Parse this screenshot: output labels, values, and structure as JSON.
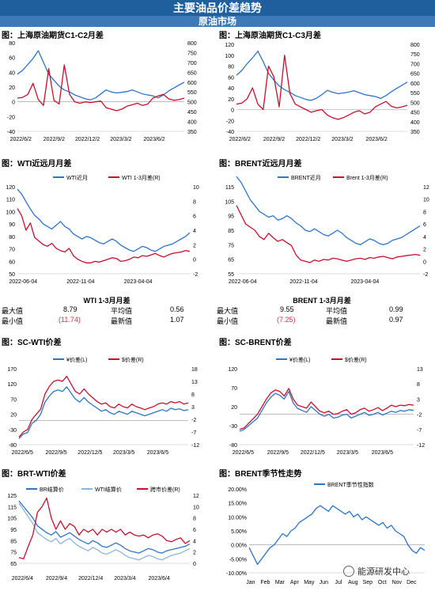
{
  "header": {
    "title": "主要油品价差趋势",
    "subtitle": "原油市场"
  },
  "colors": {
    "blue": "#2e75c6",
    "red": "#c8102e",
    "lightblue": "#8fb4dc",
    "header_bg": "#1f5f9e"
  },
  "panels": {
    "p1": {
      "title": "图：上海原油期货C1-C2月差"
    },
    "p2": {
      "title": "图：上海原油期货C1-C3月差"
    },
    "p3": {
      "title": "图：WTI近远月月差"
    },
    "p4": {
      "title": "图：BRENT近远月月差"
    },
    "p5": {
      "title": "图：SC-WTI价差"
    },
    "p6": {
      "title": "图：SC-BRENT价差"
    },
    "p7": {
      "title": "图：BRT-WTI价差"
    },
    "p8": {
      "title": "图：BRENT季节性走势"
    }
  },
  "stats": {
    "wti": {
      "title": "WTI 1-3月月差",
      "max_label": "最大值",
      "max_value": "8.79",
      "avg_label": "平均值",
      "avg_value": "0.56",
      "min_label": "最小值",
      "min_value": "(11.74)",
      "latest_label": "最新值",
      "latest_value": "1.07"
    },
    "brent": {
      "title": "BRENT 1-3月月差",
      "max_label": "最大值",
      "max_value": "9.55",
      "avg_label": "平均值",
      "avg_value": "0.99",
      "min_label": "最小值",
      "min_value": "(7.25)",
      "latest_label": "最新值",
      "latest_value": "0.97"
    }
  },
  "watermark": {
    "text": "能源研发中心"
  },
  "chart_data": [
    {
      "id": "p1",
      "type": "line",
      "x_ticks": [
        "2022/6/2",
        "2022/9/2",
        "2022/12/2",
        "2023/3/2",
        "2023/6/2"
      ],
      "y_ticks": [
        "80",
        "60",
        "40",
        "20",
        "0",
        "-20",
        "-40"
      ],
      "ylim": [
        -40,
        80
      ],
      "y2_ticks": [
        "800",
        "750",
        "700",
        "650",
        "600",
        "550",
        "500",
        "450",
        "400",
        "350"
      ],
      "y2lim": [
        350,
        800
      ],
      "series": [
        {
          "axis": "right",
          "color": "#2e75c6",
          "values": [
            640,
            660,
            690,
            720,
            760,
            700,
            640,
            610,
            580,
            560,
            550,
            535,
            525,
            515,
            510,
            520,
            540,
            560,
            550,
            545,
            548,
            552,
            560,
            550,
            540,
            535,
            530,
            520,
            535,
            555,
            570,
            585,
            600
          ]
        },
        {
          "axis": "left",
          "color": "#c8102e",
          "values": [
            5,
            6,
            10,
            25,
            3,
            -5,
            45,
            2,
            -3,
            50,
            10,
            0,
            -2,
            0,
            -1,
            0,
            1,
            -8,
            -10,
            -12,
            -10,
            -6,
            -4,
            -2,
            -5,
            -3,
            5,
            8,
            10,
            4,
            2,
            3,
            5
          ]
        }
      ]
    },
    {
      "id": "p2",
      "type": "line",
      "x_ticks": [
        "2022/6/2",
        "2022/9/2",
        "2022/12/2",
        "2023/3/2",
        "2023/6/2"
      ],
      "y_ticks": [
        "120",
        "100",
        "80",
        "60",
        "40",
        "20",
        "0",
        "-20",
        "-40"
      ],
      "ylim": [
        -40,
        120
      ],
      "y2_ticks": [
        "800",
        "750",
        "700",
        "650",
        "600",
        "550",
        "500",
        "450",
        "400",
        "350"
      ],
      "y2lim": [
        350,
        800
      ],
      "series": [
        {
          "axis": "right",
          "color": "#2e75c6",
          "values": [
            640,
            665,
            700,
            730,
            765,
            710,
            650,
            615,
            585,
            565,
            552,
            535,
            525,
            515,
            510,
            522,
            540,
            562,
            552,
            545,
            548,
            553,
            560,
            550,
            540,
            535,
            530,
            520,
            535,
            555,
            572,
            588,
            605
          ]
        },
        {
          "axis": "left",
          "color": "#c8102e",
          "values": [
            10,
            12,
            20,
            40,
            10,
            0,
            80,
            60,
            5,
            100,
            30,
            10,
            5,
            0,
            -5,
            -2,
            0,
            -10,
            -15,
            -18,
            -15,
            -10,
            -5,
            -2,
            -8,
            -5,
            5,
            10,
            15,
            6,
            3,
            5,
            8
          ]
        }
      ]
    },
    {
      "id": "p3",
      "type": "line",
      "x_ticks": [
        "2022-06-04",
        "2022-11-04",
        "2023-04-04"
      ],
      "y_ticks": [
        "120",
        "110",
        "100",
        "90",
        "80",
        "70",
        "60",
        "50"
      ],
      "ylim": [
        50,
        120
      ],
      "y2_ticks": [
        "10",
        "8",
        "6",
        "4",
        "2",
        "0",
        "-2"
      ],
      "y2lim": [
        -2,
        10
      ],
      "legend": [
        "WTI近月",
        "WTI 1-3月差(R)"
      ],
      "series": [
        {
          "name": "WTI近月",
          "axis": "left",
          "color": "#2e75c6",
          "values": [
            118,
            114,
            108,
            102,
            97,
            94,
            90,
            88,
            86,
            89,
            92,
            88,
            86,
            82,
            80,
            78,
            80,
            79,
            77,
            75,
            74,
            76,
            78,
            76,
            73,
            71,
            69,
            68,
            70,
            72,
            71,
            69,
            68,
            70,
            72,
            73,
            74,
            76,
            78,
            80,
            83
          ]
        },
        {
          "name": "WTI 1-3月差(R)",
          "axis": "right",
          "color": "#c8102e",
          "values": [
            7,
            6,
            4,
            5,
            3,
            2.5,
            2,
            1.8,
            2.2,
            1.5,
            1.2,
            1.0,
            1.5,
            0.5,
            0,
            -0.3,
            -0.5,
            -0.5,
            -0.3,
            -0.4,
            -0.2,
            0,
            0.2,
            0.1,
            -0.3,
            -0.2,
            0,
            0.3,
            0.2,
            0.5,
            0.4,
            0.6,
            0.8,
            0.5,
            0.3,
            0.6,
            0.8,
            0.9,
            1.0,
            1.2,
            1.1
          ]
        }
      ]
    },
    {
      "id": "p4",
      "type": "line",
      "x_ticks": [
        "2022-06-04",
        "2022-11-04",
        "2023-04-04"
      ],
      "y_ticks": [
        "115",
        "105",
        "95",
        "85",
        "75",
        "65",
        "55"
      ],
      "ylim": [
        55,
        115
      ],
      "y2_ticks": [
        "12",
        "10",
        "8",
        "6",
        "4",
        "2",
        "0",
        "-2"
      ],
      "y2lim": [
        -2,
        12
      ],
      "legend": [
        "BRENT近月",
        "Brent 1-3月差(R)"
      ],
      "series": [
        {
          "name": "BRENT近月",
          "axis": "left",
          "color": "#2e75c6",
          "values": [
            122,
            118,
            112,
            106,
            102,
            98,
            96,
            94,
            95,
            92,
            93,
            95,
            93,
            90,
            88,
            85,
            84,
            86,
            84,
            82,
            81,
            83,
            85,
            83,
            80,
            78,
            76,
            75,
            77,
            79,
            78,
            76,
            75,
            76,
            78,
            79,
            80,
            82,
            84,
            86,
            88
          ]
        },
        {
          "name": "Brent 1-3月差(R)",
          "axis": "right",
          "color": "#c8102e",
          "values": [
            9,
            7.5,
            6,
            5.5,
            5,
            4,
            3.5,
            4.5,
            3.8,
            3.2,
            3.5,
            3.0,
            2.5,
            1.0,
            0.2,
            0.0,
            -0.2,
            0.2,
            0.0,
            0.3,
            0.2,
            0.5,
            0.4,
            0.2,
            0.0,
            0.2,
            0.4,
            0.5,
            0.3,
            0.6,
            0.5,
            0.7,
            0.8,
            0.6,
            0.4,
            0.7,
            0.8,
            0.9,
            1.0,
            1.1,
            0.97
          ]
        }
      ]
    },
    {
      "id": "p5",
      "type": "line",
      "x_ticks": [
        "2022/6/5",
        "2022/9/5",
        "2022/12/5",
        "2023/3/5",
        "2023/6/5"
      ],
      "y_ticks": [
        "170",
        "120",
        "70",
        "20",
        "-30",
        "-80"
      ],
      "ylim": [
        -80,
        170
      ],
      "y2_ticks": [
        "18",
        "13",
        "8",
        "3",
        "-2",
        "-7",
        "-12"
      ],
      "y2lim": [
        -12,
        18
      ],
      "legend": [
        "¥价差(L)",
        "$价差(R)"
      ],
      "series": [
        {
          "name": "¥价差(L)",
          "axis": "left",
          "color": "#2e75c6",
          "values": [
            -60,
            -45,
            -40,
            -10,
            0,
            20,
            60,
            80,
            95,
            100,
            95,
            110,
            90,
            70,
            60,
            75,
            60,
            50,
            40,
            30,
            35,
            25,
            20,
            30,
            25,
            20,
            30,
            25,
            20,
            15,
            20,
            25,
            30,
            35,
            30,
            40,
            35,
            38,
            32,
            35
          ]
        },
        {
          "name": "$价差(R)",
          "axis": "right",
          "color": "#c8102e",
          "values": [
            -9,
            -7,
            -6,
            -2,
            0,
            2,
            8,
            11,
            13,
            13.5,
            13,
            15,
            12,
            9,
            8,
            10,
            8,
            6.5,
            5,
            4,
            4.5,
            3,
            2.5,
            4,
            3,
            2.5,
            4,
            3,
            2.5,
            1.8,
            2.5,
            3,
            4,
            4.5,
            4,
            5,
            4.5,
            5,
            4,
            4.5
          ]
        }
      ]
    },
    {
      "id": "p6",
      "type": "line",
      "x_ticks": [
        "2022/6/5",
        "2022/9/5",
        "2022/12/5",
        "2023/3/5",
        "2023/6/5"
      ],
      "y_ticks": [
        "120",
        "70",
        "20",
        "-30",
        "-80"
      ],
      "ylim": [
        -80,
        120
      ],
      "y2_ticks": [
        "13",
        "8",
        "3",
        "-2",
        "-7",
        "-12"
      ],
      "y2lim": [
        -12,
        13
      ],
      "legend": [
        "¥价差(L)",
        "$价差(R)"
      ],
      "series": [
        {
          "name": "¥价差(L)",
          "axis": "left",
          "color": "#2e75c6",
          "values": [
            -45,
            -40,
            -30,
            -20,
            -10,
            10,
            30,
            45,
            55,
            50,
            40,
            60,
            30,
            15,
            10,
            5,
            20,
            10,
            0,
            -5,
            0,
            -10,
            -8,
            -2,
            0,
            -10,
            -5,
            0,
            5,
            -3,
            0,
            5,
            -2,
            3,
            8,
            5,
            10,
            8,
            12,
            10
          ]
        },
        {
          "name": "$价差(R)",
          "axis": "right",
          "color": "#c8102e",
          "values": [
            -7,
            -6.5,
            -5,
            -3.5,
            -2,
            0.5,
            3,
            5,
            6,
            5.5,
            4,
            6.5,
            3,
            1,
            0.5,
            0,
            2,
            0.5,
            -1,
            -1.5,
            -1,
            -2,
            -1.8,
            -1,
            -0.5,
            -2,
            -1.5,
            -0.5,
            0,
            -1,
            -0.5,
            0.2,
            -0.8,
            0,
            1,
            0.5,
            1,
            0.8,
            1.2,
            1
          ]
        }
      ]
    },
    {
      "id": "p7",
      "type": "line",
      "x_ticks": [
        "2022/6/4",
        "2022/9/4",
        "2022/12/4",
        "2023/3/4",
        "2023/6/4"
      ],
      "y_ticks": [
        "125",
        "115",
        "105",
        "95",
        "85",
        "75",
        "65"
      ],
      "ylim": [
        65,
        125
      ],
      "y2_ticks": [
        "12",
        "10",
        "8",
        "6",
        "4",
        "2",
        "0"
      ],
      "y2lim": [
        0,
        12
      ],
      "legend": [
        "BR结算价",
        "WTI结算价",
        "跨市价差(R)"
      ],
      "series": [
        {
          "name": "BR结算价",
          "axis": "left",
          "color": "#2e75c6",
          "values": [
            120,
            115,
            110,
            105,
            98,
            95,
            92,
            90,
            93,
            88,
            90,
            92,
            89,
            86,
            84,
            82,
            85,
            83,
            80,
            79,
            81,
            83,
            81,
            78,
            76,
            75,
            74,
            76,
            78,
            77,
            75,
            74,
            76,
            77,
            78,
            79,
            80,
            82
          ]
        },
        {
          "name": "WTI结算价",
          "axis": "left",
          "color": "#8fb4dc",
          "values": [
            118,
            112,
            106,
            100,
            92,
            89,
            86,
            84,
            87,
            82,
            85,
            87,
            83,
            80,
            78,
            76,
            79,
            77,
            74,
            73,
            75,
            77,
            75,
            72,
            70,
            69,
            68,
            70,
            72,
            71,
            69,
            68,
            70,
            72,
            73,
            74,
            76,
            78
          ]
        },
        {
          "name": "跨市价差(R)",
          "axis": "right",
          "color": "#c8102e",
          "values": [
            1,
            0.8,
            3,
            5,
            9,
            10,
            11.5,
            8,
            6,
            7.5,
            6,
            7,
            6.5,
            5,
            6,
            5.5,
            6,
            5,
            6,
            5.5,
            6,
            5.5,
            6,
            5,
            5.5,
            5,
            4.8,
            5,
            4.5,
            5,
            5.2,
            4.8,
            4,
            3.8,
            4.2,
            4.5,
            3.5,
            4
          ]
        }
      ]
    },
    {
      "id": "p8",
      "type": "line",
      "x_ticks": [
        "Jan",
        "Feb",
        "Mar",
        "Apr",
        "May",
        "Jun",
        "Jul",
        "Aug",
        "Sep",
        "Oct",
        "Nov",
        "Dec"
      ],
      "y_ticks": [
        "20.00%",
        "15.00%",
        "10.00%",
        "5.00%",
        "0.00%",
        "-5.00%",
        "-10.00%"
      ],
      "ylim": [
        -10,
        20
      ],
      "legend": [
        "BRENT季节性指数"
      ],
      "series": [
        {
          "name": "BRENT季节性指数",
          "axis": "left",
          "color": "#2e75c6",
          "values": [
            -1,
            -4,
            -7,
            -5,
            -3,
            -1,
            0,
            2,
            4,
            3,
            5,
            6,
            8,
            9,
            10,
            11,
            13,
            14,
            13,
            12,
            14,
            13,
            12,
            11,
            12,
            10,
            11,
            9,
            10,
            9,
            8,
            7,
            8,
            6,
            7,
            5,
            4,
            3,
            0,
            -2,
            -3,
            -1,
            -2
          ]
        }
      ]
    }
  ]
}
